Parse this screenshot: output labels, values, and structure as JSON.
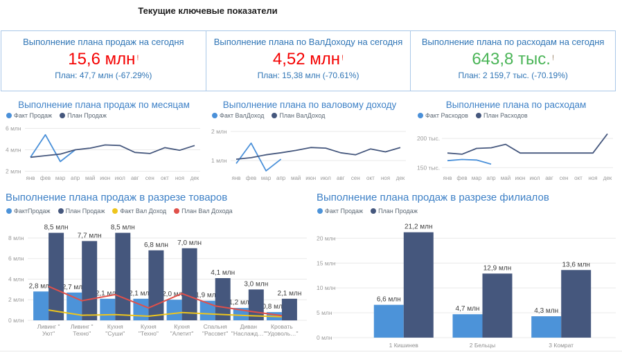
{
  "page": {
    "title": "Текущие ключевые показатели"
  },
  "kpis": [
    {
      "title": "Выполнение плана продаж на сегодня",
      "value": "15,6 млн",
      "alert": "!",
      "plan": "План: 47,7 млн (-67.29%)",
      "value_color": "#f40000",
      "alert_color": "#f0443a"
    },
    {
      "title": "Выполнение плана по ВалДоходу на сегодня",
      "value": "4,52 млн",
      "alert": "!",
      "plan": "План: 15,38 млн (-70.61%)",
      "value_color": "#f40000",
      "alert_color": "#f0443a"
    },
    {
      "title": "Выполнение плана по расходам на сегодня",
      "value": "643,8 тыс.",
      "alert": "!",
      "plan": "План: 2 159,7 тыс. (-70.19%)",
      "value_color": "#49b456",
      "alert_color": "#9a8266"
    }
  ],
  "chart_data": [
    {
      "type": "line",
      "title": "Выполнение плана продаж по месяцам",
      "x": [
        "янв",
        "фев",
        "мар",
        "апр",
        "май",
        "июн",
        "июл",
        "авг",
        "сен",
        "окт",
        "ноя",
        "дек"
      ],
      "ylim": [
        1.9,
        6.03
      ],
      "yticks": [
        {
          "value": 6,
          "label": "6 млн"
        },
        {
          "value": 4,
          "label": "4 млн"
        },
        {
          "value": 2,
          "label": "2 млн"
        }
      ],
      "grid": true,
      "legend_position": "top-left",
      "series": [
        {
          "name": "Факт Продаж",
          "color": "#4a90d9",
          "values": [
            3.3,
            5.4,
            2.9,
            4.0
          ]
        },
        {
          "name": "План Продаж",
          "color": "#45577d",
          "values": [
            3.3,
            3.45,
            3.6,
            4.0,
            4.15,
            4.45,
            4.4,
            3.75,
            3.65,
            4.2,
            3.95,
            4.4
          ]
        }
      ]
    },
    {
      "type": "line",
      "title": "Выполнение плана по валовому доходу",
      "x": [
        "янв",
        "фев",
        "мар",
        "апр",
        "май",
        "июн",
        "июл",
        "авг",
        "сен",
        "окт",
        "ноя",
        "дек"
      ],
      "ylim": [
        0.6,
        2.12
      ],
      "yticks": [
        {
          "value": 2,
          "label": "2 млн"
        },
        {
          "value": 1,
          "label": "1 млн"
        }
      ],
      "grid": true,
      "legend_position": "top-left",
      "series": [
        {
          "name": "Факт ВалДоход",
          "color": "#4a90d9",
          "values": [
            0.9,
            1.6,
            0.65,
            1.05
          ]
        },
        {
          "name": "План ВалДоход",
          "color": "#45577d",
          "values": [
            1.05,
            1.1,
            1.2,
            1.27,
            1.35,
            1.45,
            1.43,
            1.27,
            1.2,
            1.4,
            1.3,
            1.45
          ]
        }
      ]
    },
    {
      "type": "line",
      "title": "Выполнение плана по расходам",
      "x": [
        "янв",
        "фев",
        "мар",
        "апр",
        "май",
        "июн",
        "июл",
        "авг",
        "сен",
        "окт",
        "ноя",
        "дек"
      ],
      "ylim": [
        142,
        218
      ],
      "yticks": [
        {
          "value": 200,
          "label": "200 тыс."
        },
        {
          "value": 150,
          "label": "150 тыс."
        }
      ],
      "grid": true,
      "legend_position": "top-left",
      "series": [
        {
          "name": "Факт Расходов",
          "color": "#4a90d9",
          "values": [
            162,
            164,
            163,
            156
          ]
        },
        {
          "name": "План Расходов",
          "color": "#45577d",
          "values": [
            175,
            173,
            183,
            184,
            190,
            175,
            175,
            175,
            175,
            175,
            175,
            208
          ]
        }
      ]
    },
    {
      "type": "bar",
      "title": "Выполнение плана продаж в разрезе товаров",
      "categories": [
        [
          "Ливинг \"",
          "Уют\""
        ],
        [
          "Ливинг \"",
          "Техно\""
        ],
        [
          "Кухня",
          "\"Суши\""
        ],
        [
          "Кухня",
          "\"Техно\""
        ],
        [
          "Кухня",
          "\"Алетит\""
        ],
        [
          "Спальня",
          "\"Рассвет\""
        ],
        [
          "Диван",
          "\"Наслажд…\""
        ],
        [
          "Кровать",
          "\"Удоволь…\""
        ]
      ],
      "ylim": [
        0,
        8.4
      ],
      "yticks": [
        {
          "value": 0,
          "label": "0 млн"
        },
        {
          "value": 2,
          "label": "2 млн"
        },
        {
          "value": 4,
          "label": "4 млн"
        },
        {
          "value": 6,
          "label": "6 млн"
        },
        {
          "value": 8,
          "label": "8 млн"
        }
      ],
      "grid": true,
      "legend_position": "top-left",
      "bar_series": [
        {
          "name": "ФактПродаж",
          "color": "#4c93d9",
          "values": [
            2.8,
            2.7,
            2.1,
            2.1,
            2.0,
            1.9,
            1.2,
            0.8
          ],
          "labels": [
            "2,8 млн",
            "2,7 млн",
            "2,1 млн",
            "2,1 млн",
            "2,0 млн",
            "1,9 млн",
            "1,2 млн",
            "0,8 млн"
          ]
        },
        {
          "name": "План Продаж",
          "color": "#45577d",
          "values": [
            8.5,
            7.7,
            8.5,
            6.8,
            7.0,
            4.1,
            3.0,
            2.1
          ],
          "labels": [
            "8,5 млн",
            "7,7 млн",
            "8,5 млн",
            "6,8 млн",
            "7,0 млн",
            "4,1 млн",
            "3,0 млн",
            "2,1 млн"
          ]
        }
      ],
      "line_series": [
        {
          "name": "Факт Вал Доход",
          "color": "#eec51c",
          "values": [
            1.0,
            0.5,
            0.55,
            0.4,
            0.75,
            0.6,
            0.45,
            0.35
          ]
        },
        {
          "name": "План Вал Дохода",
          "color": "#e0504a",
          "values": [
            3.3,
            1.9,
            2.5,
            1.2,
            2.6,
            1.4,
            0.9,
            0.45
          ]
        }
      ]
    },
    {
      "type": "bar",
      "title": "Выполнение плана продаж в разрезе филиалов",
      "categories": [
        [
          "1 Кишинев"
        ],
        [
          "2 Бельцы"
        ],
        [
          "3 Комрат"
        ]
      ],
      "ylim": [
        0,
        22
      ],
      "yticks": [
        {
          "value": 0,
          "label": "0 млн"
        },
        {
          "value": 5,
          "label": "5 млн"
        },
        {
          "value": 10,
          "label": "10 млн"
        },
        {
          "value": 15,
          "label": "15 млн"
        },
        {
          "value": 20,
          "label": "20 млн"
        }
      ],
      "grid": true,
      "legend_position": "top-left",
      "bar_series": [
        {
          "name": "Факт Продаж",
          "color": "#4c93d9",
          "values": [
            6.6,
            4.7,
            4.3
          ],
          "labels": [
            "6,6 млн",
            "4,7 млн",
            "4,3 млн"
          ]
        },
        {
          "name": "План Продаж",
          "color": "#45577d",
          "values": [
            21.2,
            12.9,
            13.6
          ],
          "labels": [
            "21,2 млн",
            "12,9 млн",
            "13,6 млн"
          ]
        }
      ],
      "line_series": []
    }
  ]
}
